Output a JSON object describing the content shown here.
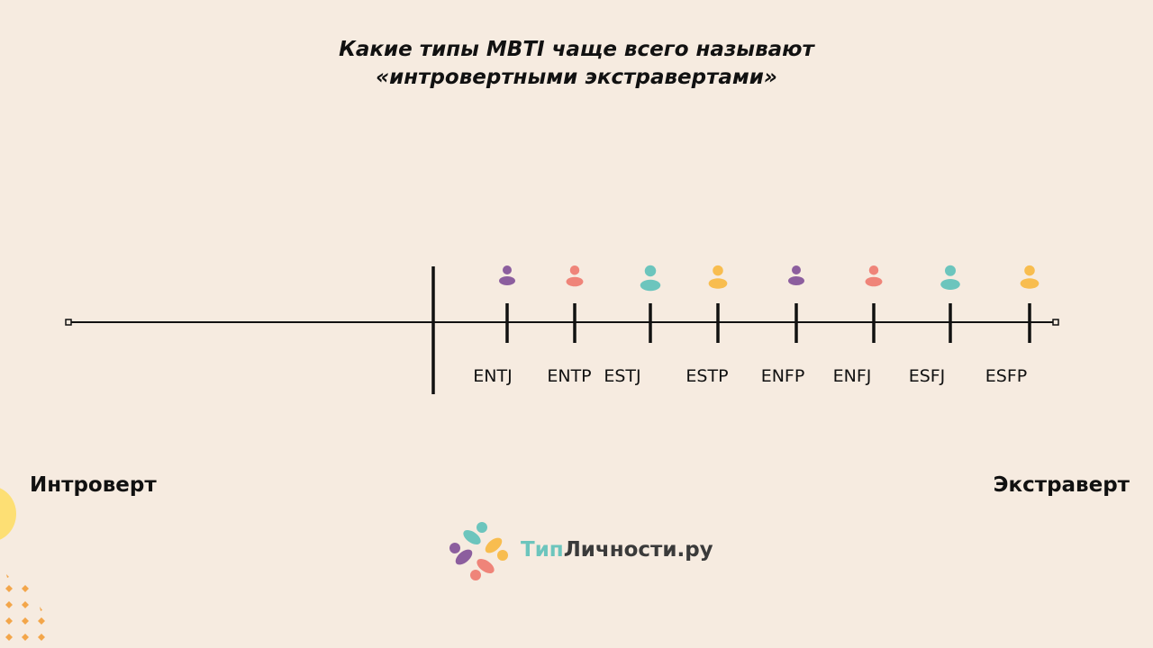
{
  "title": {
    "line1": "Какие типы MBTI чаще всего называют",
    "line2": "«интровертными экстравертами»"
  },
  "poles": {
    "left": "Интроверт",
    "right": "Экстраверт"
  },
  "types": [
    {
      "label": "ENTJ",
      "color": "#8c5e9e"
    },
    {
      "label": "ENTP",
      "color": "#ef8479"
    },
    {
      "label": "ESTJ",
      "color": "#6cc5bd"
    },
    {
      "label": "ESTP",
      "color": "#f8bd4f"
    },
    {
      "label": "ENFP",
      "color": "#8c5e9e"
    },
    {
      "label": "ENFJ",
      "color": "#ef8479"
    },
    {
      "label": "ESFJ",
      "color": "#6cc5bd"
    },
    {
      "label": "ESFP",
      "color": "#f8bd4f"
    }
  ],
  "logo": {
    "part1": "Тип",
    "part2": "Личности.ру"
  },
  "colors": {
    "background": "#f6ebe0",
    "line": "#111111",
    "teal": "#6cc5bd",
    "purple": "#8c5e9e",
    "coral": "#ef8479",
    "yellow": "#f8bd4f"
  }
}
